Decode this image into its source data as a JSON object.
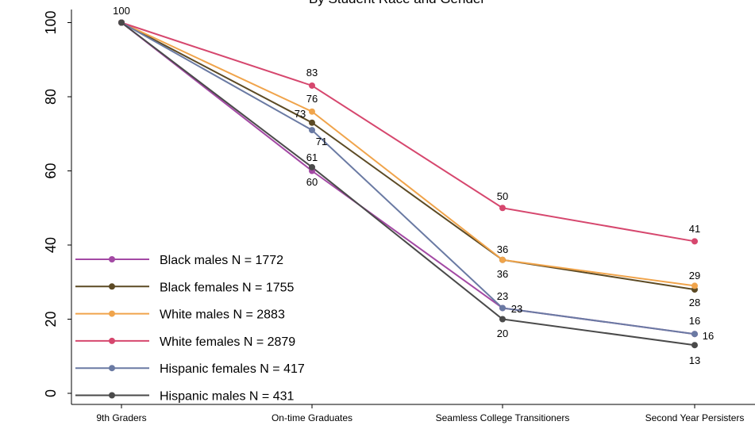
{
  "chart_data": {
    "type": "line",
    "title": "By Student Race and Gender",
    "xlabel": "",
    "ylabel": "",
    "categories": [
      "9th Graders",
      "On-time Graduates",
      "Seamless College Transitioners",
      "Second Year Persisters"
    ],
    "ylim": [
      0,
      100
    ],
    "yticks": [
      0,
      20,
      40,
      60,
      80,
      100
    ],
    "grid": false,
    "legend_position": "bottom-left",
    "series": [
      {
        "name": "Black males N = 1772",
        "color": "#a349a4",
        "values": [
          100,
          60,
          23,
          16
        ]
      },
      {
        "name": "Black females N = 1755",
        "color": "#5c4a24",
        "values": [
          100,
          73,
          36,
          28
        ]
      },
      {
        "name": "White males N = 2883",
        "color": "#f0a44b",
        "values": [
          100,
          76,
          36,
          29
        ]
      },
      {
        "name": "White females N = 2879",
        "color": "#d6476e",
        "values": [
          100,
          83,
          50,
          41
        ]
      },
      {
        "name": "Hispanic females N = 417",
        "color": "#6a7aa3",
        "values": [
          100,
          71,
          23,
          16
        ]
      },
      {
        "name": "Hispanic males N = 431",
        "color": "#4a4a4a",
        "values": [
          100,
          61,
          20,
          13
        ]
      }
    ],
    "data_labels": [
      {
        "x": "9th Graders",
        "text": "100"
      },
      {
        "x": "On-time Graduates",
        "text": "83"
      },
      {
        "x": "On-time Graduates",
        "text": "76"
      },
      {
        "x": "On-time Graduates",
        "text": "73"
      },
      {
        "x": "On-time Graduates",
        "text": "71"
      },
      {
        "x": "On-time Graduates",
        "text": "61"
      },
      {
        "x": "On-time Graduates",
        "text": "60"
      },
      {
        "x": "Seamless College Transitioners",
        "text": "50"
      },
      {
        "x": "Seamless College Transitioners",
        "text": "36"
      },
      {
        "x": "Seamless College Transitioners",
        "text": "36"
      },
      {
        "x": "Seamless College Transitioners",
        "text": "23"
      },
      {
        "x": "Seamless College Transitioners",
        "text": "23"
      },
      {
        "x": "Seamless College Transitioners",
        "text": "20"
      },
      {
        "x": "Second Year Persisters",
        "text": "41"
      },
      {
        "x": "Second Year Persisters",
        "text": "29"
      },
      {
        "x": "Second Year Persisters",
        "text": "28"
      },
      {
        "x": "Second Year Persisters",
        "text": "16"
      },
      {
        "x": "Second Year Persisters",
        "text": "16"
      },
      {
        "x": "Second Year Persisters",
        "text": "13"
      }
    ]
  }
}
